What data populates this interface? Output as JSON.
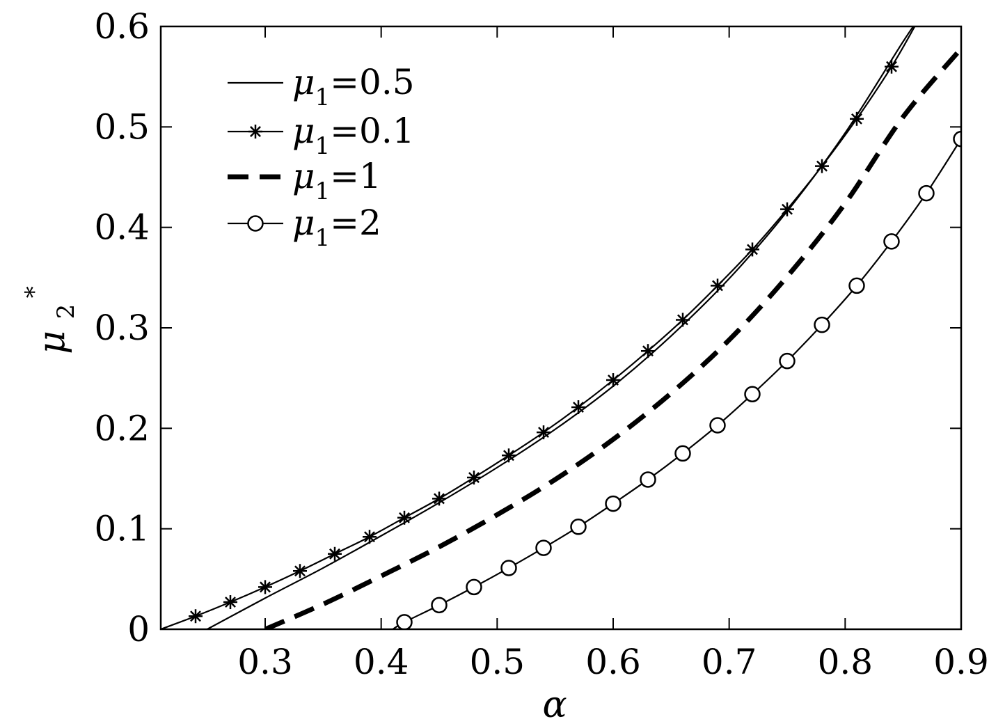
{
  "chart_data": {
    "type": "line",
    "xlabel": "α",
    "ylabel": "μ",
    "ylabel_sub": "2",
    "ylabel_sup": "*",
    "xlim": [
      0.21,
      0.9
    ],
    "ylim": [
      0,
      0.6
    ],
    "xticks": [
      0.3,
      0.4,
      0.5,
      0.6,
      0.7,
      0.8,
      0.9
    ],
    "xtick_labels": [
      "0.3",
      "0.4",
      "0.5",
      "0.6",
      "0.7",
      "0.8",
      "0.9"
    ],
    "yticks": [
      0,
      0.1,
      0.2,
      0.3,
      0.4,
      0.5,
      0.6
    ],
    "ytick_labels": [
      "0",
      "0.1",
      "0.2",
      "0.3",
      "0.4",
      "0.5",
      "0.6"
    ],
    "grid": false,
    "legend_position": "top-left",
    "series": [
      {
        "name": "=0.5",
        "legend_symbol": "μ",
        "legend_sub": "1",
        "style": "solid",
        "marker": "none",
        "x": [
          0.25,
          0.3,
          0.35,
          0.4,
          0.45,
          0.5,
          0.55,
          0.6,
          0.65,
          0.7,
          0.75,
          0.8,
          0.85,
          0.865
        ],
        "y": [
          0.0,
          0.031,
          0.061,
          0.093,
          0.126,
          0.161,
          0.199,
          0.242,
          0.292,
          0.349,
          0.416,
          0.494,
          0.585,
          0.61
        ]
      },
      {
        "name": "=0.1",
        "legend_symbol": "μ",
        "legend_sub": "1",
        "style": "solid",
        "marker": "asterisk",
        "x": [
          0.21,
          0.24,
          0.27,
          0.3,
          0.33,
          0.36,
          0.39,
          0.42,
          0.45,
          0.48,
          0.51,
          0.54,
          0.57,
          0.6,
          0.63,
          0.66,
          0.69,
          0.72,
          0.75,
          0.78,
          0.81,
          0.84,
          0.86
        ],
        "y": [
          0.0,
          0.013,
          0.027,
          0.042,
          0.058,
          0.075,
          0.092,
          0.111,
          0.13,
          0.151,
          0.173,
          0.196,
          0.221,
          0.248,
          0.277,
          0.308,
          0.342,
          0.378,
          0.418,
          0.461,
          0.508,
          0.56,
          0.6
        ]
      },
      {
        "name": "=1",
        "legend_symbol": "μ",
        "legend_sub": "1",
        "style": "dashed",
        "marker": "none",
        "x": [
          0.3,
          0.35,
          0.4,
          0.45,
          0.5,
          0.55,
          0.6,
          0.65,
          0.7,
          0.75,
          0.8,
          0.85,
          0.9
        ],
        "y": [
          0.0,
          0.025,
          0.053,
          0.082,
          0.114,
          0.149,
          0.189,
          0.235,
          0.288,
          0.351,
          0.424,
          0.51,
          0.578
        ]
      },
      {
        "name": "=2",
        "legend_symbol": "μ",
        "legend_sub": "1",
        "style": "solid",
        "marker": "circle",
        "x": [
          0.41,
          0.42,
          0.45,
          0.48,
          0.51,
          0.54,
          0.57,
          0.6,
          0.63,
          0.66,
          0.69,
          0.72,
          0.75,
          0.78,
          0.81,
          0.84,
          0.87,
          0.9
        ],
        "y": [
          0.0,
          0.007,
          0.024,
          0.042,
          0.061,
          0.081,
          0.102,
          0.125,
          0.149,
          0.175,
          0.203,
          0.234,
          0.267,
          0.303,
          0.342,
          0.386,
          0.434,
          0.488
        ]
      }
    ]
  }
}
